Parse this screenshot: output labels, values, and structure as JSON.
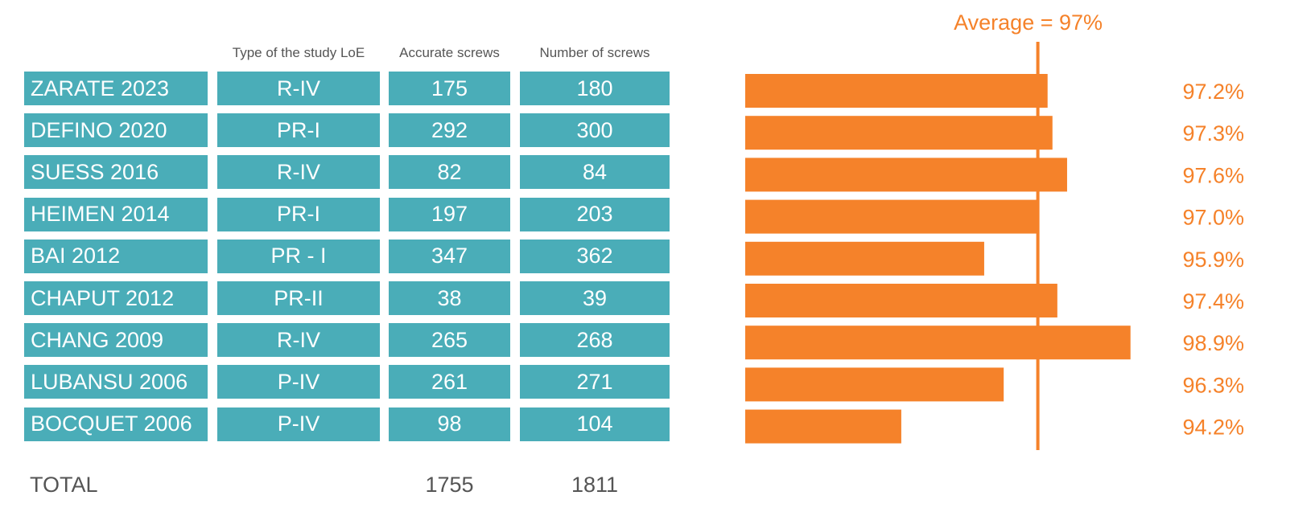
{
  "table": {
    "headers": {
      "type": "Type of the study LoE",
      "accurate": "Accurate screws",
      "number": "Number of screws"
    },
    "rows": [
      {
        "study": "ZARATE 2023",
        "type": "R-IV",
        "accurate": "175",
        "number": "180"
      },
      {
        "study": "DEFINO 2020",
        "type": "PR-I",
        "accurate": "292",
        "number": "300"
      },
      {
        "study": "SUESS 2016",
        "type": "R-IV",
        "accurate": "82",
        "number": "84"
      },
      {
        "study": "HEIMEN 2014",
        "type": "PR-I",
        "accurate": "197",
        "number": "203"
      },
      {
        "study": "BAI 2012",
        "type": "PR - I",
        "accurate": "347",
        "number": "362"
      },
      {
        "study": "CHAPUT 2012",
        "type": "PR-II",
        "accurate": "38",
        "number": "39"
      },
      {
        "study": "CHANG 2009",
        "type": "R-IV",
        "accurate": "265",
        "number": "268"
      },
      {
        "study": "LUBANSU 2006",
        "type": "P-IV",
        "accurate": "261",
        "number": "271"
      },
      {
        "study": "BOCQUET 2006",
        "type": "P-IV",
        "accurate": "98",
        "number": "104"
      }
    ],
    "total": {
      "label": "TOTAL",
      "accurate": "1755",
      "number": "1811"
    }
  },
  "chart_data": {
    "type": "bar",
    "orientation": "horizontal",
    "categories": [
      "ZARATE 2023",
      "DEFINO 2020",
      "SUESS 2016",
      "HEIMEN 2014",
      "BAI 2012",
      "CHAPUT 2012",
      "CHANG 2009",
      "LUBANSU 2006",
      "BOCQUET 2006"
    ],
    "values": [
      97.2,
      97.3,
      97.6,
      97.0,
      95.9,
      97.4,
      98.9,
      96.3,
      94.2
    ],
    "value_labels": [
      "97.2%",
      "97.3%",
      "97.6%",
      "97.0%",
      "95.9%",
      "97.4%",
      "98.9%",
      "96.3%",
      "94.2%"
    ],
    "xlim": [
      91.0,
      99.0
    ],
    "average": {
      "value": 97,
      "label": "Average = 97%"
    },
    "grid": false,
    "colors": {
      "bar": "#f5822a",
      "label": "#f5822a",
      "table_fill": "#4aadb8"
    }
  }
}
